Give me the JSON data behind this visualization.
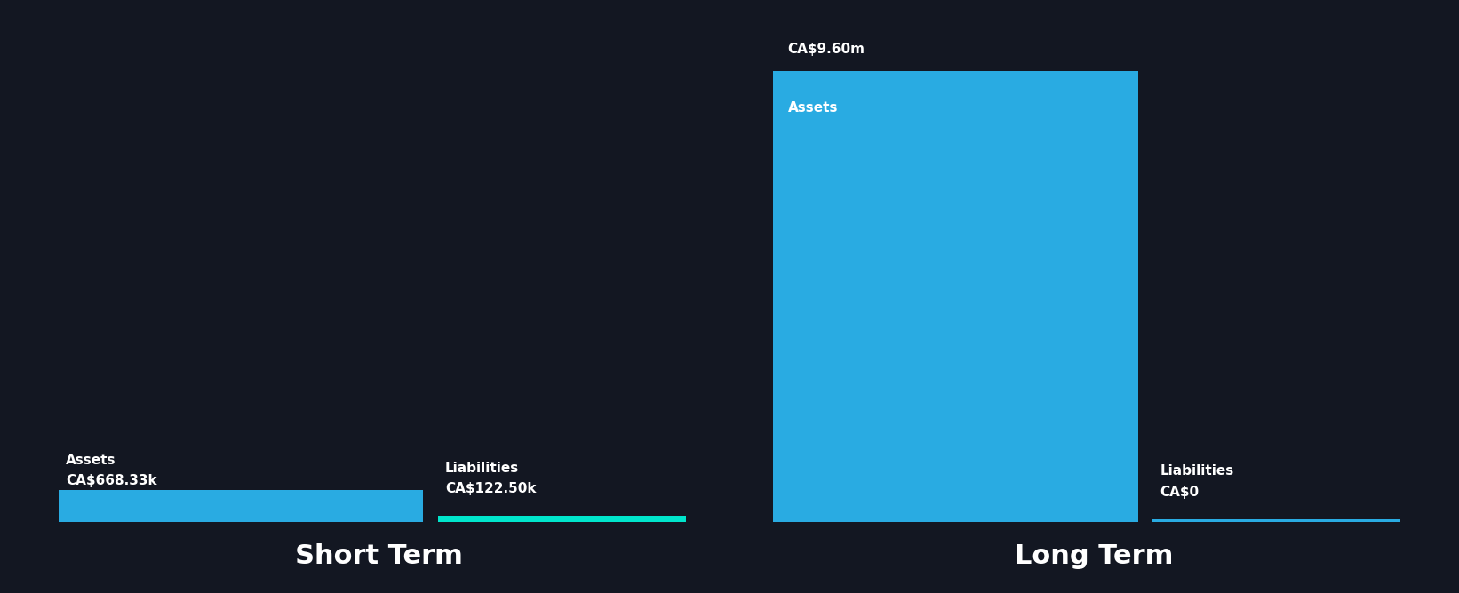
{
  "background_color": "#131722",
  "text_color": "#ffffff",
  "bar_color_assets": "#29ABE2",
  "bar_color_liabilities_short": "#00E5CC",
  "bar_color_liabilities_long": "#29ABE2",
  "short_term_assets": 668.33,
  "short_term_liabilities": 122.5,
  "long_term_assets": 9600.0,
  "long_term_liabilities": 0.0,
  "short_term_label": "Short Term",
  "long_term_label": "Long Term",
  "assets_label": "Assets",
  "liabilities_label": "Liabilities",
  "short_term_assets_text": "CA$668.33k",
  "short_term_liabilities_text": "CA$122.50k",
  "long_term_assets_text": "CA$9.60m",
  "long_term_liabilities_text": "CA$0",
  "section_title_fontsize": 22,
  "label_fontsize": 11,
  "value_fontsize": 11
}
